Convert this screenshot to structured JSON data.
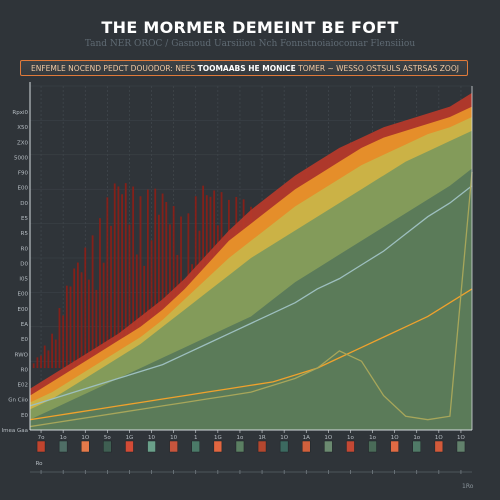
{
  "title": "THE MORMER DEMEINT BE FOFT",
  "subtitle": "Tand NER OROC / Gasnoud Uarsiiiou Nch Fonnstnoiaiocomar Flensiiiou",
  "banner": {
    "left_text": "ENFEMLE NOCEND PEDCT DOUODOR:",
    "mid_text": "NEES",
    "highlight_text": "TOOMAABS HE MONICE",
    "right_text": "TOMER ~ WESSO OSTSULS ASTRSAS ZOOJ"
  },
  "colors": {
    "background": "#2f3439",
    "band_red": "#b5392a",
    "band_orange": "#e8922a",
    "band_yellow": "#c9b448",
    "band_green": "#7e9a5c",
    "band_dark_green": "#58795a",
    "line_orange": "#f0a22c",
    "line_teal": "#9dbfbf",
    "line_olive": "#a7a65a",
    "spikes": "#8e1e16"
  },
  "chart_data": {
    "type": "area",
    "title": "THE MORMER DEMEINT BE FOFT",
    "subtitle": "Tand NER OROC / Gasnoud Uarsiiiou Nch Fonnstnoiaiocomar Flensiiiou",
    "xlabel": "",
    "ylabel": "",
    "x": [
      0,
      1,
      2,
      3,
      4,
      5,
      6,
      7,
      8,
      9,
      10,
      11,
      12,
      13,
      14,
      15,
      16,
      17,
      18,
      19,
      20
    ],
    "xlim": [
      0,
      20
    ],
    "ylim": [
      0,
      100
    ],
    "y_tick_labels": [
      "Rpxi0",
      "X50",
      "ZX0",
      "5000",
      "F90",
      "E00",
      "D0",
      "E5",
      "R5",
      "R0",
      "D0",
      "I05",
      "E00",
      "E00",
      "EA",
      "E0",
      "RWO",
      "R0",
      "E02",
      "Gn Ciio",
      "E0",
      "Imea Gaa"
    ],
    "series": [
      {
        "type": "area",
        "values": [
          12,
          16,
          20,
          24,
          28,
          33,
          38,
          44,
          51,
          58,
          64,
          69,
          74,
          78,
          82,
          85,
          88,
          90,
          92,
          94,
          98
        ]
      },
      {
        "type": "area",
        "values": [
          10,
          14,
          18,
          22,
          26,
          30,
          35,
          41,
          48,
          55,
          60,
          65,
          70,
          74,
          78,
          82,
          85,
          87,
          89,
          91,
          94
        ]
      },
      {
        "type": "area",
        "values": [
          8,
          11,
          15,
          19,
          23,
          27,
          32,
          38,
          44,
          50,
          55,
          60,
          65,
          69,
          73,
          77,
          80,
          83,
          86,
          88,
          91
        ]
      },
      {
        "type": "area",
        "values": [
          6,
          9,
          13,
          17,
          21,
          25,
          30,
          35,
          40,
          45,
          50,
          54,
          58,
          62,
          66,
          70,
          74,
          78,
          81,
          84,
          87
        ]
      },
      {
        "type": "area",
        "values": [
          3,
          6,
          9,
          12,
          15,
          18,
          21,
          24,
          27,
          30,
          33,
          38,
          43,
          47,
          51,
          55,
          59,
          63,
          67,
          71,
          76
        ]
      },
      {
        "type": "line",
        "values": [
          7,
          9,
          11,
          13,
          15,
          17,
          19,
          22,
          25,
          28,
          31,
          34,
          37,
          41,
          44,
          48,
          52,
          57,
          62,
          66,
          71
        ]
      },
      {
        "type": "line",
        "values": [
          3,
          4,
          5,
          6,
          7,
          8,
          9,
          10,
          11,
          12,
          13,
          14,
          16,
          18,
          21,
          24,
          27,
          30,
          33,
          37,
          41
        ]
      },
      {
        "type": "line",
        "values": [
          1,
          2,
          3,
          4,
          5,
          6,
          7,
          8,
          9,
          10,
          11,
          13,
          15,
          18,
          23,
          20,
          10,
          4,
          3,
          4,
          75
        ]
      },
      {
        "type": "bar",
        "values": [
          0,
          10,
          33,
          40,
          62,
          50,
          57,
          42,
          60,
          49,
          52,
          33,
          30,
          44,
          0,
          0,
          0,
          0,
          0,
          0,
          0
        ]
      }
    ],
    "x_tick_labels": [
      "7o",
      "1o",
      "1O",
      "5o",
      "1G",
      "10",
      "10",
      "1",
      "1G",
      "1o",
      "1R",
      "1O",
      "1A",
      "1O",
      "1o",
      "1o",
      "1O",
      "1o",
      "1O",
      "1O"
    ],
    "bottom_tick_labels": [
      "Ro",
      "",
      "",
      "",
      "",
      "",
      "",
      "",
      "",
      "",
      "",
      "",
      "",
      "",
      "",
      "",
      "",
      "",
      "",
      ""
    ],
    "legend_swatch_colors": [
      "#c0442e",
      "#4f6e66",
      "#e57a4a",
      "#3f5f52",
      "#d34b36",
      "#6aa08a",
      "#c7553d",
      "#4b7a68",
      "#e26640",
      "#5b7f62",
      "#b3472f",
      "#3c6a60",
      "#d1603c",
      "#6b8a70",
      "#c44834",
      "#4a6b58",
      "#e06b44",
      "#507a67",
      "#d35a3a",
      "#62816c"
    ],
    "corner_label": "1Ro",
    "grid": true,
    "legend_position": "bottom"
  }
}
